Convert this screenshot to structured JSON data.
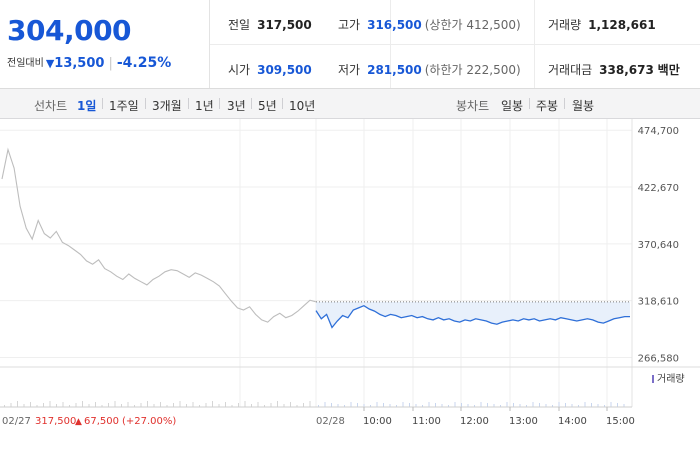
{
  "quote": {
    "current_price": "304,000",
    "change_label": "전일대비",
    "change_arrow": "▼",
    "change_value": "13,500",
    "change_pct": "-4.25%"
  },
  "info": {
    "prev_close": {
      "label": "전일",
      "value": "317,500"
    },
    "high": {
      "label": "고가",
      "value": "316,500",
      "sub": "(상한가 412,500)"
    },
    "volume": {
      "label": "거래량",
      "value": "1,128,661"
    },
    "open": {
      "label": "시가",
      "value": "309,500"
    },
    "low": {
      "label": "저가",
      "value": "281,500",
      "sub": "(하한가 222,500)"
    },
    "trade_amount": {
      "label": "거래대금",
      "value": "338,673",
      "unit": "백만"
    }
  },
  "line_chart_tabs": {
    "header": "선차트",
    "items": [
      {
        "label": "1일",
        "selected": true
      },
      {
        "label": "1주일",
        "selected": false
      },
      {
        "label": "3개월",
        "selected": false
      },
      {
        "label": "1년",
        "selected": false
      },
      {
        "label": "3년",
        "selected": false
      },
      {
        "label": "5년",
        "selected": false
      },
      {
        "label": "10년",
        "selected": false
      }
    ]
  },
  "candle_chart_tabs": {
    "header": "봉차트",
    "items": [
      {
        "label": "일봉"
      },
      {
        "label": "주봉"
      },
      {
        "label": "월봉"
      }
    ]
  },
  "colors": {
    "accent_blue": "#1757d6",
    "down_blue": "#1757d6",
    "up_red": "#e0312d",
    "prev_day_line": "#bdbdbd",
    "today_line": "#2e6fd8",
    "today_fill": "#e8f0fb"
  },
  "chart_data": {
    "type": "line",
    "y_ticks": [
      "474,700",
      "422,670",
      "370,640",
      "318,610",
      "266,580"
    ],
    "ylim": [
      256000,
      485000
    ],
    "reference_price": 317500,
    "volume_legend": "거래량",
    "prev_day": {
      "date_label": "02/27",
      "close_label": "317,500",
      "change_arrow": "▲",
      "change_label": "67,500",
      "change_pct_label": "(+27.00%)",
      "values": [
        430000,
        457000,
        440000,
        405000,
        385000,
        375000,
        392000,
        380000,
        376000,
        382000,
        372000,
        369000,
        365000,
        361000,
        355000,
        352000,
        356000,
        348000,
        345000,
        341000,
        338000,
        343000,
        339000,
        336000,
        333000,
        338000,
        341000,
        345000,
        347000,
        346000,
        343000,
        340000,
        344000,
        342000,
        339000,
        336000,
        332000,
        325000,
        318000,
        312000,
        310000,
        313000,
        306000,
        301000,
        299000,
        304000,
        307000,
        303000,
        305000,
        309000,
        314000,
        319000,
        317500
      ]
    },
    "today": {
      "date_label": "02/28",
      "time_labels": [
        "10:00",
        "11:00",
        "12:00",
        "13:00",
        "14:00",
        "15:00"
      ],
      "values": [
        309500,
        302000,
        306000,
        294000,
        300000,
        305000,
        303000,
        310000,
        312000,
        314000,
        311000,
        309000,
        306000,
        304000,
        306000,
        305000,
        303000,
        304000,
        305000,
        303000,
        304000,
        302000,
        301000,
        303000,
        301000,
        302000,
        300000,
        299000,
        301000,
        300000,
        302000,
        301000,
        300000,
        298000,
        297000,
        299000,
        300000,
        301000,
        300000,
        302000,
        301000,
        302000,
        300000,
        301000,
        302000,
        301000,
        303000,
        302000,
        301000,
        300000,
        301000,
        302000,
        301000,
        299000,
        298000,
        300000,
        302000,
        303000,
        304000,
        304000
      ]
    }
  }
}
